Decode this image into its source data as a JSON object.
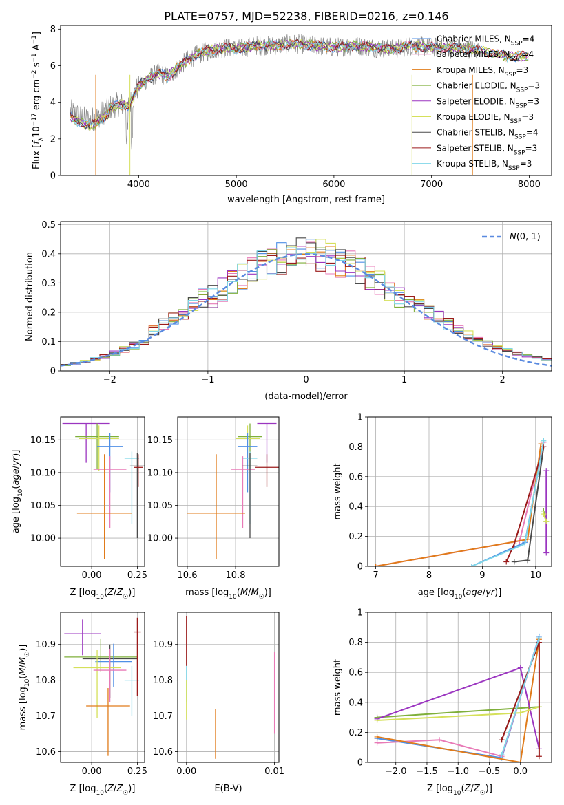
{
  "figure": {
    "title": "PLATE=0757, MJD=52238, FIBERID=0216, z=0.146"
  },
  "colors": {
    "Chabrier MILES": "#4f8fe6",
    "Salpeter MILES": "#e87ab7",
    "Kroupa MILES": "#e07b1a",
    "Chabrier ELODIE": "#7faf3a",
    "Salpeter ELODIE": "#9b35c0",
    "Kroupa ELODIE": "#d5e05a",
    "Chabrier STELIB": "#4a4a4a",
    "Salpeter STELIB": "#9b1b1b",
    "Kroupa STELIB": "#7fd6e8",
    "data": "#8a8a8a",
    "normal": "#5a8ae0"
  },
  "chart_data": [
    {
      "id": "spectrum",
      "type": "line",
      "xlabel": "wavelength [Angstrom, rest frame]",
      "ylabel": "Flux [fλ10⁻¹⁷ erg cm⁻² s⁻¹ A⁻¹]",
      "xlim": [
        3200,
        8230
      ],
      "ylim": [
        0,
        8.2
      ],
      "xticks": [
        4000,
        5000,
        6000,
        7000,
        8000
      ],
      "yticks": [
        0,
        2,
        4,
        6,
        8
      ],
      "grid": false,
      "legend_position": "upper right",
      "legend": [
        "Chabrier MILES, N_SSP=4",
        "Salpeter MILES, N_SSP=4",
        "Kroupa MILES, N_SSP=3",
        "Chabrier ELODIE, N_SSP=3",
        "Salpeter ELODIE, N_SSP=3",
        "Kroupa ELODIE, N_SSP=3",
        "Chabrier STELIB, N_SSP=4",
        "Salpeter STELIB, N_SSP=3",
        "Kroupa STELIB, N_SSP=3"
      ],
      "legend_series": [
        "Chabrier MILES",
        "Salpeter MILES",
        "Kroupa MILES",
        "Chabrier ELODIE",
        "Salpeter ELODIE",
        "Kroupa ELODIE",
        "Chabrier STELIB",
        "Salpeter STELIB",
        "Kroupa STELIB"
      ],
      "continuum": {
        "x": [
          3300,
          3400,
          3500,
          3600,
          3700,
          3800,
          3900,
          4000,
          4100,
          4200,
          4300,
          4400,
          4500,
          4600,
          4700,
          4800,
          4900,
          5000,
          5200,
          5400,
          5600,
          5800,
          6000,
          6200,
          6400,
          6600,
          6800,
          7000,
          7200,
          7400,
          7600,
          7800,
          8000
        ],
        "y": [
          3.5,
          3.2,
          3.0,
          3.3,
          3.7,
          3.9,
          3.8,
          4.9,
          5.3,
          5.6,
          5.4,
          5.9,
          6.3,
          6.6,
          6.8,
          6.9,
          7.0,
          6.9,
          7.1,
          7.1,
          7.2,
          7.1,
          7.0,
          7.1,
          7.0,
          6.9,
          7.1,
          7.0,
          7.0,
          6.9,
          6.7,
          6.5,
          6.5
        ]
      },
      "data_range": [
        3300,
        7480
      ]
    },
    {
      "id": "residuals",
      "type": "histogram",
      "xlabel": "(data-model)/error",
      "ylabel": "Normed distribution",
      "xlim": [
        -2.5,
        2.5
      ],
      "ylim": [
        0,
        0.51
      ],
      "xticks": [
        -2,
        -1,
        0,
        1,
        2
      ],
      "yticks": [
        0.0,
        0.1,
        0.2,
        0.3,
        0.4,
        0.5
      ],
      "grid": true,
      "legend": [
        "N(0, 1)"
      ],
      "legend_position": "upper right",
      "bin_width": 0.1,
      "normal": {
        "mu": 0,
        "sigma": 1
      }
    },
    {
      "id": "age_vs_Z",
      "type": "errorbar",
      "xlabel": "Z [log10(Z/Z☉)]",
      "ylabel": "age  [log10(age/yr)]",
      "xlim": [
        -0.17,
        0.29
      ],
      "ylim": [
        9.957,
        10.185
      ],
      "xticks": [
        0.0,
        0.25
      ],
      "xticklabels": [
        "0.00",
        "0.25"
      ],
      "yticks": [
        10.0,
        10.05,
        10.1,
        10.15
      ],
      "yticklabels": [
        "10.00",
        "10.05",
        "10.10",
        "10.15"
      ],
      "grid": true,
      "points": [
        {
          "series": "Salpeter ELODIE",
          "x": -0.03,
          "xerr": 0.13,
          "y": 10.175,
          "yerr": [
            0.06,
            0.0
          ]
        },
        {
          "series": "Chabrier ELODIE",
          "x": 0.03,
          "xerr": 0.12,
          "y": 10.155,
          "yerr": [
            0.05,
            0.02
          ]
        },
        {
          "series": "Kroupa ELODIE",
          "x": 0.04,
          "xerr": 0.11,
          "y": 10.152,
          "yerr": [
            0.05,
            0.02
          ]
        },
        {
          "series": "Chabrier MILES",
          "x": 0.1,
          "xerr": 0.07,
          "y": 10.14,
          "yerr": [
            0.07,
            0.02
          ]
        },
        {
          "series": "Kroupa STELIB",
          "x": 0.22,
          "xerr": 0.04,
          "y": 10.122,
          "yerr": [
            0.1,
            0.01
          ]
        },
        {
          "series": "Salpeter MILES",
          "x": 0.1,
          "xerr": 0.09,
          "y": 10.105,
          "yerr": [
            0.09,
            0.02
          ]
        },
        {
          "series": "Chabrier STELIB",
          "x": 0.25,
          "xerr": 0.04,
          "y": 10.11,
          "yerr": [
            0.11,
            0.02
          ]
        },
        {
          "series": "Salpeter STELIB",
          "x": 0.255,
          "xerr": 0.025,
          "y": 10.108,
          "yerr": [
            0.03,
            0.02
          ]
        },
        {
          "series": "Kroupa MILES",
          "x": 0.07,
          "xerr": 0.15,
          "y": 10.038,
          "yerr": [
            0.07,
            0.09
          ]
        }
      ]
    },
    {
      "id": "age_vs_mass",
      "type": "errorbar",
      "xlabel": "mass [log10(M/M☉)]",
      "ylabel": "",
      "xlim": [
        10.56,
        10.98
      ],
      "ylim": [
        9.957,
        10.185
      ],
      "xticks": [
        10.6,
        10.8
      ],
      "xticklabels": [
        "10.6",
        "10.8"
      ],
      "yticks": [
        10.0,
        10.05,
        10.1,
        10.15
      ],
      "yticklabels": [
        "10.00",
        "10.05",
        "10.10",
        "10.15"
      ],
      "grid": true,
      "points": [
        {
          "series": "Salpeter ELODIE",
          "x": 10.93,
          "xerr": 0.04,
          "y": 10.175,
          "yerr": [
            0.06,
            0.0
          ]
        },
        {
          "series": "Chabrier ELODIE",
          "x": 10.86,
          "xerr": 0.05,
          "y": 10.155,
          "yerr": [
            0.05,
            0.02
          ]
        },
        {
          "series": "Kroupa ELODIE",
          "x": 10.85,
          "xerr": 0.05,
          "y": 10.152,
          "yerr": [
            0.05,
            0.02
          ]
        },
        {
          "series": "Chabrier MILES",
          "x": 10.85,
          "xerr": 0.04,
          "y": 10.14,
          "yerr": [
            0.07,
            0.02
          ]
        },
        {
          "series": "Kroupa STELIB",
          "x": 10.86,
          "xerr": 0.03,
          "y": 10.122,
          "yerr": [
            0.1,
            0.01
          ]
        },
        {
          "series": "Salpeter MILES",
          "x": 10.83,
          "xerr": 0.05,
          "y": 10.105,
          "yerr": [
            0.09,
            0.02
          ]
        },
        {
          "series": "Chabrier STELIB",
          "x": 10.86,
          "xerr": 0.03,
          "y": 10.11,
          "yerr": [
            0.11,
            0.02
          ]
        },
        {
          "series": "Salpeter STELIB",
          "x": 10.93,
          "xerr": 0.05,
          "y": 10.108,
          "yerr": [
            0.03,
            0.02
          ]
        },
        {
          "series": "Kroupa MILES",
          "x": 10.72,
          "xerr": 0.12,
          "y": 10.038,
          "yerr": [
            0.07,
            0.09
          ]
        }
      ]
    },
    {
      "id": "weight_vs_age",
      "type": "line",
      "xlabel": "age  [log10(age/yr)]",
      "ylabel": "mass weight",
      "xlim": [
        6.85,
        10.3
      ],
      "ylim": [
        0,
        1.0
      ],
      "xticks": [
        7,
        8,
        9,
        10
      ],
      "yticks": [
        0.0,
        0.2,
        0.4,
        0.6,
        0.8,
        1.0
      ],
      "grid": true,
      "series": [
        {
          "name": "Chabrier MILES",
          "points": [
            [
              8.8,
              0.0
            ],
            [
              9.8,
              0.16
            ],
            [
              10.15,
              0.83
            ]
          ]
        },
        {
          "name": "Salpeter MILES",
          "points": [
            [
              7.0,
              0.0
            ],
            [
              9.7,
              0.17
            ],
            [
              10.15,
              0.83
            ]
          ]
        },
        {
          "name": "Kroupa MILES",
          "points": [
            [
              7.0,
              0.0
            ],
            [
              9.85,
              0.18
            ],
            [
              10.1,
              0.82
            ]
          ]
        },
        {
          "name": "Chabrier ELODIE",
          "points": [
            [
              10.15,
              0.37
            ],
            [
              10.2,
              0.3
            ]
          ]
        },
        {
          "name": "Salpeter ELODIE",
          "points": [
            [
              10.2,
              0.09
            ],
            [
              10.2,
              0.64
            ]
          ]
        },
        {
          "name": "Kroupa ELODIE",
          "points": [
            [
              10.15,
              0.35
            ],
            [
              10.2,
              0.3
            ]
          ]
        },
        {
          "name": "Chabrier STELIB",
          "points": [
            [
              9.6,
              0.03
            ],
            [
              9.85,
              0.04
            ],
            [
              10.15,
              0.8
            ]
          ]
        },
        {
          "name": "Salpeter STELIB",
          "points": [
            [
              9.45,
              0.03
            ],
            [
              9.6,
              0.15
            ],
            [
              10.15,
              0.8
            ]
          ]
        },
        {
          "name": "Kroupa STELIB",
          "points": [
            [
              8.8,
              0.0
            ],
            [
              9.8,
              0.15
            ],
            [
              10.15,
              0.84
            ]
          ]
        }
      ]
    },
    {
      "id": "mass_vs_Z",
      "type": "errorbar",
      "xlabel": "Z [log10(Z/Z☉)]",
      "ylabel": "mass [log10(M/M☉)]",
      "xlim": [
        -0.17,
        0.29
      ],
      "ylim": [
        10.57,
        10.99
      ],
      "xticks": [
        0.0,
        0.25
      ],
      "xticklabels": [
        "0.00",
        "0.25"
      ],
      "yticks": [
        10.6,
        10.7,
        10.8,
        10.9
      ],
      "yticklabels": [
        "10.6",
        "10.7",
        "10.8",
        "10.9"
      ],
      "grid": true,
      "points": [
        {
          "series": "Salpeter ELODIE",
          "x": -0.05,
          "xerr": 0.1,
          "y": 10.93,
          "yerr": [
            0.06,
            0.04
          ]
        },
        {
          "series": "Chabrier ELODIE",
          "x": 0.05,
          "xerr": 0.2,
          "y": 10.865,
          "yerr": [
            0.04,
            0.05
          ]
        },
        {
          "series": "Chabrier STELIB",
          "x": 0.1,
          "xerr": 0.15,
          "y": 10.86,
          "yerr": [
            0.11,
            0.04
          ]
        },
        {
          "series": "Chabrier MILES",
          "x": 0.12,
          "xerr": 0.1,
          "y": 10.852,
          "yerr": [
            0.07,
            0.05
          ]
        },
        {
          "series": "Kroupa ELODIE",
          "x": 0.03,
          "xerr": 0.13,
          "y": 10.835,
          "yerr": [
            0.14,
            0.05
          ]
        },
        {
          "series": "Salpeter MILES",
          "x": 0.1,
          "xerr": 0.09,
          "y": 10.828,
          "yerr": [
            0.09,
            0.06
          ]
        },
        {
          "series": "Kroupa STELIB",
          "x": 0.22,
          "xerr": 0.04,
          "y": 10.8,
          "yerr": [
            0.1,
            0.04
          ]
        },
        {
          "series": "Salpeter STELIB",
          "x": 0.25,
          "xerr": 0.02,
          "y": 10.935,
          "yerr": [
            0.18,
            0.04
          ]
        },
        {
          "series": "Kroupa MILES",
          "x": 0.09,
          "xerr": 0.12,
          "y": 10.728,
          "yerr": [
            0.14,
            0.05
          ]
        }
      ]
    },
    {
      "id": "mass_vs_ebv",
      "type": "errorbar",
      "xlabel": "E(B-V)",
      "ylabel": "",
      "xlim": [
        -0.001,
        0.0105
      ],
      "ylim": [
        10.57,
        10.99
      ],
      "xticks": [
        0.0,
        0.01
      ],
      "xticklabels": [
        "0.00",
        "0.01"
      ],
      "yticks": [
        10.6,
        10.7,
        10.8,
        10.9
      ],
      "yticklabels": [
        "10.6",
        "10.7",
        "10.8",
        "10.9"
      ],
      "grid": true,
      "points": [
        {
          "series": "Salpeter STELIB",
          "x": 0.0,
          "xerr": 0.0,
          "y": 10.93,
          "yerr": [
            0.09,
            0.05
          ]
        },
        {
          "series": "Kroupa STELIB",
          "x": 0.0,
          "xerr": 0.0,
          "y": 10.8,
          "yerr": [
            0.06,
            0.04
          ]
        },
        {
          "series": "Kroupa ELODIE",
          "x": 0.0,
          "xerr": 0.0,
          "y": 10.76,
          "yerr": [
            0.07,
            0.04
          ]
        },
        {
          "series": "Kroupa MILES",
          "x": 0.0033,
          "xerr": 0.0,
          "y": 10.65,
          "yerr": [
            0.07,
            0.07
          ]
        },
        {
          "series": "Salpeter MILES",
          "x": 0.01,
          "xerr": 0.0,
          "y": 10.77,
          "yerr": [
            0.12,
            0.11
          ]
        }
      ]
    },
    {
      "id": "weight_vs_Z",
      "type": "line",
      "xlabel": "Z [log10(Z/Z☉)]",
      "ylabel": "mass weight",
      "xlim": [
        -2.45,
        0.5
      ],
      "ylim": [
        0,
        1.0
      ],
      "xticks": [
        -2.0,
        -1.5,
        -1.0,
        -0.5,
        0.0
      ],
      "xticklabels": [
        "−2.0",
        "−1.5",
        "−1.0",
        "−0.5",
        "0.0"
      ],
      "yticks": [
        0.0,
        0.2,
        0.4,
        0.6,
        0.8,
        1.0
      ],
      "grid": true,
      "series": [
        {
          "name": "Chabrier MILES",
          "points": [
            [
              -2.3,
              0.16
            ],
            [
              -0.3,
              0.03
            ],
            [
              0.3,
              0.84
            ]
          ]
        },
        {
          "name": "Salpeter MILES",
          "points": [
            [
              -2.3,
              0.13
            ],
            [
              -1.3,
              0.15
            ],
            [
              -0.3,
              0.04
            ],
            [
              0.3,
              0.83
            ]
          ]
        },
        {
          "name": "Kroupa MILES",
          "points": [
            [
              -2.3,
              0.17
            ],
            [
              0.0,
              0.0
            ],
            [
              0.3,
              0.82
            ]
          ]
        },
        {
          "name": "Chabrier ELODIE",
          "points": [
            [
              -2.3,
              0.3
            ],
            [
              0.3,
              0.37
            ]
          ]
        },
        {
          "name": "Salpeter ELODIE",
          "points": [
            [
              -2.3,
              0.29
            ],
            [
              0.0,
              0.63
            ],
            [
              0.3,
              0.09
            ]
          ]
        },
        {
          "name": "Kroupa ELODIE",
          "points": [
            [
              -2.3,
              0.28
            ],
            [
              0.0,
              0.33
            ],
            [
              0.3,
              0.37
            ]
          ]
        },
        {
          "name": "Chabrier STELIB",
          "points": [
            [
              -0.3,
              0.15
            ],
            [
              0.3,
              0.8
            ]
          ]
        },
        {
          "name": "Salpeter STELIB",
          "points": [
            [
              -0.3,
              0.15
            ],
            [
              0.3,
              0.8
            ],
            [
              0.3,
              0.04
            ]
          ]
        },
        {
          "name": "Kroupa STELIB",
          "points": [
            [
              -0.3,
              0.05
            ],
            [
              0.3,
              0.83
            ]
          ]
        }
      ]
    }
  ]
}
